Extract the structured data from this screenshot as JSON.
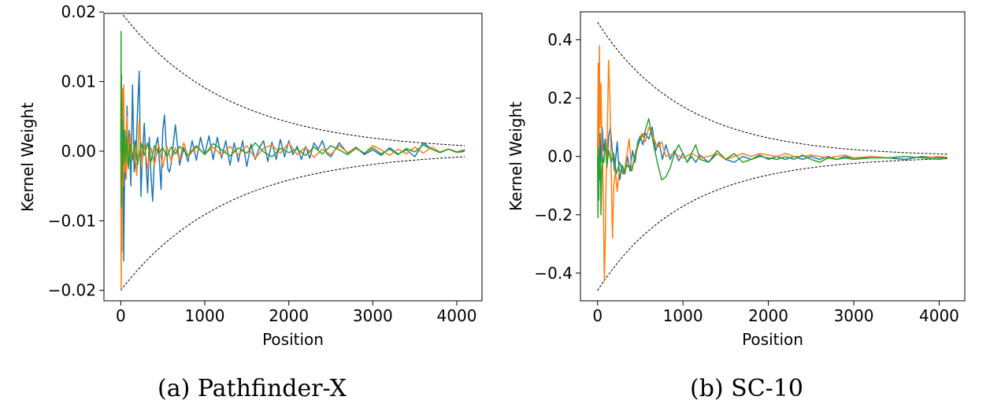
{
  "chart_data": [
    {
      "type": "line",
      "caption": "(a) Pathfinder-X",
      "xlabel": "Position",
      "ylabel": "Kernel Weight",
      "xlim": [
        -200,
        4300
      ],
      "ylim": [
        -0.0215,
        0.0198
      ],
      "xticks": [
        0,
        1000,
        2000,
        3000,
        4000
      ],
      "xtick_labels": [
        "0",
        "1000",
        "2000",
        "3000",
        "4000"
      ],
      "yticks": [
        -0.02,
        -0.01,
        0.0,
        0.01,
        0.02
      ],
      "ytick_labels": [
        "−0.02",
        "−0.01",
        "0.00",
        "0.01",
        "0.02"
      ],
      "grid": false,
      "envelope": {
        "amplitude": 0.02,
        "x_end": 4096,
        "end_value": 0.0008,
        "style": "dashed",
        "color": "#000000"
      },
      "series": [
        {
          "color": "#1f77b4",
          "x": [
            0,
            8,
            15,
            25,
            35,
            50,
            60,
            75,
            85,
            100,
            120,
            140,
            160,
            180,
            200,
            220,
            240,
            260,
            280,
            300,
            320,
            340,
            360,
            380,
            400,
            420,
            440,
            460,
            480,
            500,
            520,
            540,
            560,
            580,
            600,
            650,
            700,
            750,
            800,
            850,
            900,
            950,
            1000,
            1050,
            1100,
            1150,
            1200,
            1250,
            1300,
            1350,
            1400,
            1450,
            1500,
            1550,
            1600,
            1650,
            1700,
            1750,
            1800,
            1850,
            1900,
            1950,
            2000,
            2050,
            2100,
            2150,
            2200,
            2250,
            2300,
            2350,
            2400,
            2450,
            2500,
            2600,
            2700,
            2800,
            2900,
            3000,
            3100,
            3200,
            3300,
            3400,
            3500,
            3600,
            3700,
            3800,
            3900,
            4000,
            4096
          ],
          "y": [
            0.0,
            0.011,
            -0.009,
            0.006,
            -0.0158,
            0.003,
            -0.004,
            0.0065,
            -0.002,
            0.003,
            -0.005,
            0.0095,
            -0.003,
            -0.001,
            0.006,
            0.0115,
            -0.0065,
            0.0,
            0.004,
            -0.0015,
            -0.006,
            0.002,
            -0.0035,
            -0.0072,
            -0.001,
            0.001,
            0.002,
            -0.0015,
            -0.0055,
            0.003,
            0.0052,
            0.001,
            -0.0025,
            -0.003,
            -0.0018,
            0.0038,
            -0.002,
            0.0005,
            -0.0015,
            0.0015,
            -0.0013,
            0.002,
            -0.0005,
            0.0022,
            -0.0012,
            0.002,
            -0.001,
            0.0015,
            -0.002,
            0.0012,
            -0.0015,
            0.0015,
            -0.0022,
            0.001,
            -0.0012,
            0.0005,
            0.0015,
            -0.0015,
            0.0013,
            -0.0012,
            0.0017,
            -0.0008,
            0.0015,
            -0.0005,
            0.0007,
            -0.0012,
            0.0007,
            -0.001,
            0.0012,
            0.0003,
            0.0015,
            -0.0003,
            -0.0008,
            0.0012,
            -0.0003,
            0.0006,
            -0.0005,
            0.0002,
            -0.0006,
            0.0005,
            -0.0004,
            0.0002,
            -0.0008,
            0.0012,
            0.0003,
            -0.0002,
            0.0003,
            -0.0002,
            0.0
          ]
        },
        {
          "color": "#ff7f0e",
          "x": [
            0,
            5,
            10,
            15,
            20,
            28,
            35,
            45,
            55,
            65,
            75,
            90,
            110,
            130,
            160,
            190,
            220,
            250,
            280,
            320,
            360,
            400,
            450,
            500,
            550,
            600,
            650,
            700,
            750,
            800,
            900,
            1000,
            1100,
            1200,
            1300,
            1400,
            1500,
            1600,
            1700,
            1800,
            1900,
            2000,
            2100,
            2200,
            2300,
            2400,
            2500,
            2600,
            2700,
            2800,
            2900,
            3000,
            3100,
            3200,
            3300,
            3400,
            3500,
            3600,
            3700,
            3800,
            3900,
            4000,
            4096
          ],
          "y": [
            0.0,
            -0.0198,
            0.005,
            -0.0145,
            0.009,
            -0.005,
            0.0095,
            -0.003,
            0.0015,
            -0.004,
            0.005,
            -0.001,
            0.0025,
            -0.0015,
            0.001,
            -0.0035,
            0.0045,
            -0.002,
            0.001,
            -0.0025,
            0.0005,
            -0.002,
            0.001,
            -0.0023,
            0.0007,
            -0.0015,
            0.0005,
            -0.0012,
            0.0012,
            -0.0008,
            0.0006,
            -0.0004,
            0.0006,
            -0.0006,
            0.0007,
            -0.0005,
            0.0008,
            -0.001,
            0.0004,
            0.0009,
            -0.0003,
            0.0012,
            -0.0005,
            0.0006,
            -0.0009,
            0.0003,
            -0.0005,
            0.0008,
            -0.0002,
            0.0005,
            -0.0003,
            0.0008,
            0.0002,
            -0.0006,
            0.0003,
            -0.0004,
            0.0006,
            -0.0003,
            0.0006,
            -0.0001,
            0.0003,
            -0.0002,
            0.0002
          ]
        },
        {
          "color": "#2ca02c",
          "x": [
            0,
            4,
            8,
            12,
            16,
            22,
            30,
            40,
            55,
            70,
            90,
            110,
            140,
            170,
            200,
            240,
            280,
            320,
            360,
            400,
            450,
            500,
            550,
            600,
            650,
            700,
            800,
            900,
            1000,
            1100,
            1200,
            1300,
            1400,
            1500,
            1600,
            1700,
            1800,
            1900,
            2000,
            2100,
            2200,
            2300,
            2400,
            2500,
            2600,
            2700,
            2800,
            2900,
            3000,
            3100,
            3200,
            3300,
            3400,
            3500,
            3600,
            3700,
            3800,
            3900,
            4000,
            4096
          ],
          "y": [
            0.0,
            0.0172,
            -0.008,
            0.007,
            -0.004,
            0.0045,
            -0.002,
            0.003,
            -0.0015,
            0.002,
            -0.0025,
            0.001,
            -0.0013,
            0.0015,
            -0.002,
            0.0012,
            -0.0006,
            0.0012,
            -0.0015,
            0.0008,
            -0.0003,
            0.0005,
            -0.0008,
            0.0006,
            -0.0004,
            0.0007,
            -0.0006,
            0.0008,
            -0.0005,
            0.0011,
            0.0002,
            -0.0007,
            0.0005,
            -0.0003,
            0.0012,
            -0.0001,
            -0.0008,
            0.0004,
            -0.0002,
            0.0003,
            -0.0006,
            0.0006,
            -0.0004,
            0.0008,
            0.0002,
            -0.0005,
            0.0004,
            -0.0003,
            0.0005,
            -0.0004,
            0.0003,
            -0.0005,
            0.0004,
            -0.0001,
            0.0009,
            0.0003,
            -0.0002,
            0.0003,
            -0.0001,
            0.0002
          ]
        }
      ]
    },
    {
      "type": "line",
      "caption": "(b) SC-10",
      "xlabel": "Position",
      "ylabel": "Kernel Weight",
      "xlim": [
        -200,
        4300
      ],
      "ylim": [
        -0.495,
        0.496
      ],
      "xticks": [
        0,
        1000,
        2000,
        3000,
        4000
      ],
      "xtick_labels": [
        "0",
        "1000",
        "2000",
        "3000",
        "4000"
      ],
      "yticks": [
        -0.4,
        -0.2,
        0.0,
        0.2,
        0.4
      ],
      "ytick_labels": [
        "−0.4",
        "−0.2",
        "0.0",
        "0.2",
        "0.4"
      ],
      "grid": false,
      "envelope": {
        "amplitude": 0.46,
        "x_end": 4096,
        "end_value": 0.008,
        "style": "dashed",
        "color": "#000000"
      },
      "series": [
        {
          "color": "#1f77b4",
          "x": [
            0,
            10,
            20,
            30,
            40,
            55,
            70,
            90,
            110,
            130,
            150,
            170,
            200,
            230,
            260,
            290,
            320,
            350,
            380,
            410,
            440,
            470,
            500,
            530,
            560,
            600,
            640,
            680,
            720,
            760,
            800,
            850,
            900,
            950,
            1000,
            1050,
            1100,
            1150,
            1200,
            1300,
            1400,
            1500,
            1600,
            1700,
            1800,
            1900,
            2000,
            2100,
            2200,
            2300,
            2400,
            2500,
            2600,
            2700,
            2800,
            2900,
            3000,
            3200,
            3400,
            3600,
            3800,
            4000,
            4096
          ],
          "y": [
            0.0,
            0.12,
            -0.05,
            0.08,
            -0.02,
            0.1,
            0.02,
            0.06,
            -0.04,
            0.07,
            0.1,
            0.03,
            -0.05,
            0.05,
            -0.08,
            -0.03,
            -0.06,
            0.0,
            -0.05,
            0.02,
            -0.02,
            0.05,
            0.07,
            0.04,
            0.08,
            0.06,
            0.1,
            0.02,
            0.05,
            -0.01,
            0.04,
            -0.01,
            0.02,
            -0.015,
            0.01,
            -0.02,
            0.0,
            -0.02,
            0.005,
            -0.02,
            0.01,
            -0.01,
            -0.02,
            0.0,
            -0.01,
            0.005,
            -0.01,
            0.0,
            -0.01,
            0.0,
            -0.01,
            0.0,
            -0.01,
            0.0,
            -0.01,
            0.0,
            -0.01,
            0.0,
            -0.005,
            -0.01,
            0.0,
            -0.005,
            -0.005
          ]
        },
        {
          "color": "#ff7f0e",
          "x": [
            0,
            8,
            15,
            22,
            30,
            40,
            50,
            60,
            70,
            80,
            90,
            100,
            115,
            130,
            145,
            160,
            175,
            190,
            210,
            230,
            250,
            280,
            310,
            340,
            370,
            400,
            440,
            480,
            520,
            560,
            600,
            650,
            700,
            750,
            800,
            900,
            1000,
            1100,
            1200,
            1300,
            1400,
            1500,
            1600,
            1700,
            1800,
            1900,
            2000,
            2100,
            2200,
            2300,
            2400,
            2500,
            2600,
            2700,
            2800,
            2900,
            3000,
            3200,
            3400,
            3600,
            3800,
            4000,
            4096
          ],
          "y": [
            0.0,
            0.32,
            -0.1,
            0.38,
            0.1,
            0.25,
            0.05,
            0.0,
            -0.2,
            -0.43,
            -0.3,
            -0.1,
            0.1,
            0.33,
            0.2,
            -0.05,
            -0.28,
            -0.1,
            -0.05,
            -0.12,
            -0.06,
            -0.04,
            -0.06,
            0.0,
            0.06,
            -0.05,
            0.0,
            0.04,
            0.08,
            0.05,
            0.1,
            0.07,
            0.03,
            0.05,
            0.0,
            0.01,
            -0.005,
            0.01,
            -0.005,
            0.0,
            0.01,
            -0.01,
            0.0,
            0.01,
            0.0,
            0.01,
            0.005,
            0.0,
            0.01,
            0.0,
            0.0,
            0.005,
            0.0,
            -0.005,
            0.0,
            0.005,
            -0.005,
            0.0,
            -0.005,
            0.0,
            -0.005,
            0.0,
            -0.003
          ]
        },
        {
          "color": "#2ca02c",
          "x": [
            0,
            5,
            10,
            15,
            20,
            25,
            30,
            35,
            40,
            50,
            60,
            75,
            90,
            110,
            130,
            160,
            190,
            220,
            260,
            300,
            350,
            400,
            450,
            500,
            550,
            600,
            650,
            700,
            750,
            800,
            850,
            900,
            950,
            1000,
            1050,
            1100,
            1150,
            1200,
            1300,
            1400,
            1500,
            1600,
            1700,
            1800,
            1900,
            2000,
            2100,
            2200,
            2300,
            2400,
            2500,
            2600,
            2700,
            2800,
            2900,
            3000,
            3200,
            3400,
            3600,
            3800,
            4000,
            4096
          ],
          "y": [
            0.0,
            -0.21,
            0.03,
            -0.15,
            0.02,
            -0.08,
            0.0,
            -0.03,
            -0.2,
            -0.05,
            0.0,
            -0.02,
            0.05,
            -0.03,
            0.02,
            -0.02,
            0.01,
            -0.06,
            -0.02,
            -0.06,
            -0.03,
            -0.05,
            0.02,
            0.06,
            0.08,
            0.13,
            0.05,
            -0.02,
            -0.08,
            -0.07,
            -0.04,
            0.01,
            0.04,
            0.01,
            -0.02,
            0.01,
            0.04,
            -0.01,
            -0.02,
            0.02,
            -0.01,
            0.01,
            -0.02,
            -0.01,
            0.0,
            -0.005,
            -0.01,
            0.0,
            -0.01,
            0.005,
            -0.01,
            -0.02,
            -0.005,
            -0.01,
            -0.005,
            -0.01,
            -0.005,
            -0.005,
            0.0,
            -0.005,
            -0.01,
            -0.005
          ]
        }
      ]
    }
  ]
}
